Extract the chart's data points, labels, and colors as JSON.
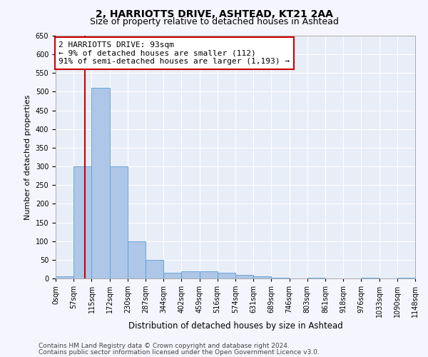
{
  "title1": "2, HARRIOTTS DRIVE, ASHTEAD, KT21 2AA",
  "title2": "Size of property relative to detached houses in Ashtead",
  "xlabel": "Distribution of detached houses by size in Ashtead",
  "ylabel": "Number of detached properties",
  "bin_edges": [
    0,
    57,
    115,
    172,
    230,
    287,
    344,
    402,
    459,
    516,
    574,
    631,
    689,
    746,
    803,
    861,
    918,
    976,
    1033,
    1090,
    1148
  ],
  "bar_heights": [
    5,
    300,
    510,
    300,
    100,
    50,
    15,
    20,
    20,
    15,
    10,
    5,
    1,
    0,
    2,
    0,
    0,
    1,
    0,
    2
  ],
  "bar_color": "#aec6e8",
  "bar_edge_color": "#5a9fd4",
  "bg_color": "#e8eef7",
  "grid_color": "#ffffff",
  "red_line_x": 93,
  "annotation_text": "2 HARRIOTTS DRIVE: 93sqm\n← 9% of detached houses are smaller (112)\n91% of semi-detached houses are larger (1,193) →",
  "annotation_box_color": "#ffffff",
  "annotation_box_edge_color": "#cc0000",
  "ylim": [
    0,
    650
  ],
  "yticks": [
    0,
    50,
    100,
    150,
    200,
    250,
    300,
    350,
    400,
    450,
    500,
    550,
    600,
    650
  ],
  "footer1": "Contains HM Land Registry data © Crown copyright and database right 2024.",
  "footer2": "Contains public sector information licensed under the Open Government Licence v3.0.",
  "title1_fontsize": 10,
  "title2_fontsize": 9,
  "xlabel_fontsize": 8.5,
  "ylabel_fontsize": 8,
  "tick_fontsize": 7,
  "annotation_fontsize": 8,
  "footer_fontsize": 6.5
}
